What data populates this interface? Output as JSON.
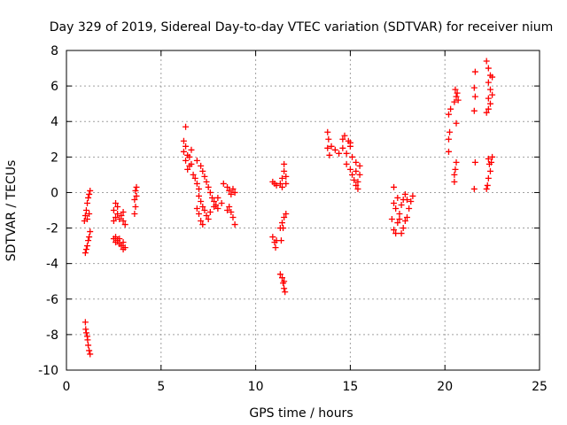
{
  "chart_data": {
    "type": "scatter",
    "title": "Day 329 of 2019, Sidereal Day-to-day VTEC variation (SDTVAR) for receiver nium",
    "xlabel": "GPS time / hours",
    "ylabel": "SDTVAR / TECUs",
    "xlim": [
      0,
      25
    ],
    "ylim": [
      -10,
      8
    ],
    "xticks": [
      0,
      5,
      10,
      15,
      20,
      25
    ],
    "yticks": [
      -10,
      -8,
      -6,
      -4,
      -2,
      0,
      2,
      4,
      6,
      8
    ],
    "grid": true,
    "marker": "+",
    "series": [
      {
        "name": "SDTVAR",
        "color": "#ff0000",
        "points": [
          [
            1.0,
            -3.4
          ],
          [
            1.05,
            -3.2
          ],
          [
            1.1,
            -3.0
          ],
          [
            1.15,
            -2.7
          ],
          [
            1.2,
            -2.5
          ],
          [
            1.25,
            -2.2
          ],
          [
            0.95,
            -1.6
          ],
          [
            1.0,
            -1.3
          ],
          [
            1.05,
            -1.0
          ],
          [
            1.1,
            -0.6
          ],
          [
            1.15,
            -0.3
          ],
          [
            1.2,
            -0.1
          ],
          [
            1.25,
            0.1
          ],
          [
            1.1,
            -1.5
          ],
          [
            1.2,
            -1.2
          ],
          [
            1.0,
            -7.3
          ],
          [
            1.02,
            -7.7
          ],
          [
            1.05,
            -7.9
          ],
          [
            1.1,
            -8.1
          ],
          [
            1.12,
            -8.3
          ],
          [
            1.15,
            -8.6
          ],
          [
            1.2,
            -8.9
          ],
          [
            1.25,
            -9.1
          ],
          [
            2.5,
            -1.0
          ],
          [
            2.6,
            -1.4
          ],
          [
            2.7,
            -1.2
          ],
          [
            2.8,
            -1.5
          ],
          [
            2.9,
            -1.3
          ],
          [
            3.0,
            -1.6
          ],
          [
            3.1,
            -1.8
          ],
          [
            2.6,
            -0.6
          ],
          [
            2.7,
            -0.8
          ],
          [
            2.5,
            -1.6
          ],
          [
            3.0,
            -1.1
          ],
          [
            2.5,
            -2.6
          ],
          [
            2.6,
            -2.8
          ],
          [
            2.7,
            -2.7
          ],
          [
            2.8,
            -2.9
          ],
          [
            2.9,
            -3.0
          ],
          [
            3.0,
            -2.8
          ],
          [
            3.1,
            -3.1
          ],
          [
            2.6,
            -2.5
          ],
          [
            2.8,
            -2.6
          ],
          [
            3.0,
            -3.2
          ],
          [
            3.6,
            -1.2
          ],
          [
            3.65,
            -0.8
          ],
          [
            3.6,
            -0.4
          ],
          [
            3.7,
            -0.2
          ],
          [
            3.65,
            0.1
          ],
          [
            3.7,
            0.3
          ],
          [
            6.3,
            3.7
          ],
          [
            6.2,
            2.9
          ],
          [
            6.3,
            2.6
          ],
          [
            6.2,
            2.3
          ],
          [
            6.4,
            2.1
          ],
          [
            6.3,
            1.8
          ],
          [
            6.5,
            1.5
          ],
          [
            6.4,
            1.3
          ],
          [
            6.6,
            1.6
          ],
          [
            6.5,
            2.0
          ],
          [
            6.6,
            2.4
          ],
          [
            6.7,
            1.0
          ],
          [
            6.8,
            0.8
          ],
          [
            6.9,
            0.5
          ],
          [
            7.0,
            0.2
          ],
          [
            7.0,
            -0.2
          ],
          [
            7.1,
            -0.5
          ],
          [
            7.2,
            -0.8
          ],
          [
            7.3,
            -1.0
          ],
          [
            7.4,
            -1.3
          ],
          [
            7.5,
            -1.5
          ],
          [
            6.9,
            1.8
          ],
          [
            7.1,
            1.5
          ],
          [
            7.2,
            1.2
          ],
          [
            7.3,
            0.9
          ],
          [
            7.4,
            0.6
          ],
          [
            7.5,
            0.3
          ],
          [
            7.6,
            0.0
          ],
          [
            7.7,
            -0.3
          ],
          [
            7.8,
            -0.5
          ],
          [
            7.9,
            -0.7
          ],
          [
            8.0,
            -0.9
          ],
          [
            7.0,
            -1.2
          ],
          [
            7.1,
            -1.6
          ],
          [
            7.2,
            -1.8
          ],
          [
            6.9,
            -0.9
          ],
          [
            7.6,
            -1.1
          ],
          [
            7.8,
            -0.8
          ],
          [
            8.0,
            -0.3
          ],
          [
            8.2,
            -0.6
          ],
          [
            8.3,
            0.5
          ],
          [
            8.5,
            0.3
          ],
          [
            8.6,
            0.1
          ],
          [
            8.7,
            -0.1
          ],
          [
            8.8,
            0.2
          ],
          [
            8.9,
            0.0
          ],
          [
            8.6,
            -0.8
          ],
          [
            8.7,
            -1.1
          ],
          [
            8.8,
            -1.4
          ],
          [
            8.9,
            -1.8
          ],
          [
            8.5,
            -1.0
          ],
          [
            10.9,
            0.6
          ],
          [
            11.0,
            0.5
          ],
          [
            11.1,
            0.4
          ],
          [
            11.3,
            0.5
          ],
          [
            11.4,
            0.8
          ],
          [
            11.5,
            1.2
          ],
          [
            11.5,
            1.6
          ],
          [
            11.6,
            0.9
          ],
          [
            11.4,
            0.3
          ],
          [
            11.6,
            0.5
          ],
          [
            10.9,
            -2.5
          ],
          [
            11.0,
            -2.8
          ],
          [
            11.05,
            -3.1
          ],
          [
            11.1,
            -2.7
          ],
          [
            11.3,
            -2.0
          ],
          [
            11.4,
            -1.7
          ],
          [
            11.5,
            -1.4
          ],
          [
            11.6,
            -1.2
          ],
          [
            11.45,
            -2.0
          ],
          [
            11.35,
            -2.7
          ],
          [
            11.3,
            -4.6
          ],
          [
            11.4,
            -4.8
          ],
          [
            11.45,
            -5.1
          ],
          [
            11.5,
            -5.4
          ],
          [
            11.55,
            -5.6
          ],
          [
            11.5,
            -5.0
          ],
          [
            13.8,
            3.4
          ],
          [
            13.85,
            3.0
          ],
          [
            13.8,
            2.5
          ],
          [
            13.9,
            2.1
          ],
          [
            14.0,
            2.6
          ],
          [
            14.2,
            2.4
          ],
          [
            14.4,
            2.2
          ],
          [
            14.6,
            2.5
          ],
          [
            14.8,
            2.2
          ],
          [
            14.6,
            3.0
          ],
          [
            14.7,
            3.2
          ],
          [
            14.9,
            2.9
          ],
          [
            15.0,
            2.6
          ],
          [
            14.8,
            1.6
          ],
          [
            15.0,
            1.3
          ],
          [
            15.1,
            1.0
          ],
          [
            15.2,
            0.7
          ],
          [
            15.3,
            0.4
          ],
          [
            15.4,
            0.2
          ],
          [
            15.1,
            2.0
          ],
          [
            15.3,
            1.7
          ],
          [
            15.5,
            1.5
          ],
          [
            15.3,
            1.2
          ],
          [
            15.5,
            1.0
          ],
          [
            15.4,
            0.6
          ],
          [
            15.0,
            2.8
          ],
          [
            17.3,
            0.3
          ],
          [
            17.3,
            -0.6
          ],
          [
            17.2,
            -1.5
          ],
          [
            17.3,
            -2.1
          ],
          [
            17.4,
            -2.3
          ],
          [
            17.5,
            -1.7
          ],
          [
            17.6,
            -1.2
          ],
          [
            17.7,
            -0.7
          ],
          [
            17.8,
            -0.4
          ],
          [
            17.9,
            -0.1
          ],
          [
            18.0,
            -0.4
          ],
          [
            17.7,
            -2.3
          ],
          [
            17.8,
            -2.0
          ],
          [
            17.9,
            -1.6
          ],
          [
            18.1,
            -0.9
          ],
          [
            18.2,
            -0.5
          ],
          [
            18.3,
            -0.2
          ],
          [
            17.5,
            -0.3
          ],
          [
            17.6,
            -1.5
          ],
          [
            17.4,
            -0.9
          ],
          [
            18.0,
            -1.4
          ],
          [
            20.2,
            2.3
          ],
          [
            20.2,
            3.0
          ],
          [
            20.25,
            3.4
          ],
          [
            20.2,
            4.4
          ],
          [
            20.3,
            4.7
          ],
          [
            20.5,
            1.0
          ],
          [
            20.55,
            1.3
          ],
          [
            20.6,
            1.7
          ],
          [
            20.5,
            0.6
          ],
          [
            20.6,
            3.9
          ],
          [
            20.5,
            5.1
          ],
          [
            20.6,
            5.4
          ],
          [
            20.65,
            5.6
          ],
          [
            20.55,
            5.8
          ],
          [
            20.7,
            5.2
          ],
          [
            21.6,
            6.8
          ],
          [
            21.55,
            5.9
          ],
          [
            21.6,
            5.4
          ],
          [
            21.55,
            4.6
          ],
          [
            21.6,
            1.7
          ],
          [
            21.55,
            0.2
          ],
          [
            22.2,
            7.4
          ],
          [
            22.3,
            7.0
          ],
          [
            22.4,
            6.6
          ],
          [
            22.3,
            6.2
          ],
          [
            22.4,
            5.8
          ],
          [
            22.5,
            6.5
          ],
          [
            22.3,
            5.3
          ],
          [
            22.4,
            5.0
          ],
          [
            22.5,
            5.5
          ],
          [
            22.2,
            4.5
          ],
          [
            22.3,
            4.7
          ],
          [
            22.3,
            1.9
          ],
          [
            22.35,
            1.6
          ],
          [
            22.4,
            1.2
          ],
          [
            22.3,
            0.8
          ],
          [
            22.25,
            0.4
          ],
          [
            22.2,
            0.2
          ],
          [
            22.5,
            2.0
          ],
          [
            22.45,
            1.7
          ]
        ]
      }
    ]
  }
}
